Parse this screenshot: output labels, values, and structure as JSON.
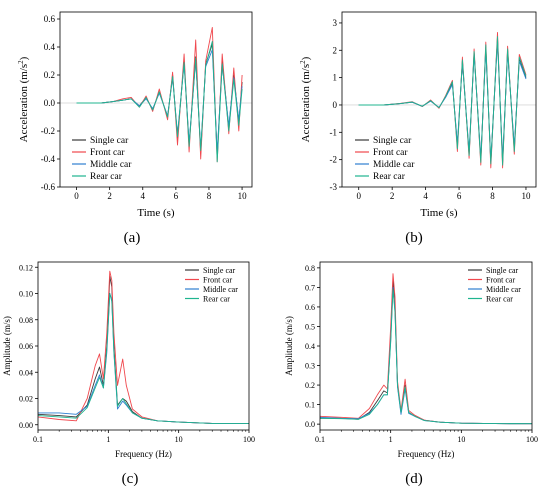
{
  "colors": {
    "single": "#3a3a3a",
    "front": "#f0484e",
    "middle": "#2f7fd0",
    "rear": "#1fb58f",
    "axis": "#000000"
  },
  "chart_data": [
    {
      "type": "line",
      "panel_label": "(a)",
      "xlabel": "Time (s)",
      "ylabel": "Acceleration (m/s²)",
      "ylabel_parts": [
        "Acceleration (m/s",
        "2",
        ")"
      ],
      "xscale": "linear",
      "xlim": [
        -1,
        10.6
      ],
      "ylim": [
        -0.6,
        0.65
      ],
      "xticks": [
        0,
        2,
        4,
        6,
        8,
        10
      ],
      "xtick_labels": [
        "0",
        "2",
        "4",
        "6",
        "8",
        "10"
      ],
      "yticks": [
        -0.6,
        -0.4,
        -0.2,
        0.0,
        0.2,
        0.4,
        0.6
      ],
      "ytick_labels": [
        "-0.6",
        "-0.4",
        "-0.2",
        "0.0",
        "0.2",
        "0.4",
        "0.6"
      ],
      "legend_position": "bottom-left",
      "series": [
        {
          "name": "Single car",
          "key": "single",
          "x": [
            0,
            1.5,
            2.2,
            2.8,
            3.3,
            3.8,
            4.2,
            4.6,
            5.0,
            5.5,
            5.8,
            6.1,
            6.5,
            6.8,
            7.2,
            7.5,
            7.8,
            8.2,
            8.5,
            8.8,
            9.2,
            9.5,
            9.8,
            10.0
          ],
          "y": [
            0,
            0,
            0.01,
            0.02,
            0.03,
            -0.02,
            0.04,
            -0.05,
            0.08,
            -0.1,
            0.2,
            -0.25,
            0.3,
            -0.3,
            0.33,
            -0.36,
            0.28,
            0.42,
            -0.38,
            0.3,
            -0.18,
            0.2,
            -0.14,
            0.15
          ]
        },
        {
          "name": "Front car",
          "key": "front",
          "x": [
            0,
            1.5,
            2.2,
            2.8,
            3.3,
            3.8,
            4.2,
            4.6,
            5.0,
            5.5,
            5.8,
            6.1,
            6.5,
            6.8,
            7.2,
            7.5,
            7.8,
            8.2,
            8.5,
            8.8,
            9.2,
            9.5,
            9.8,
            10.0
          ],
          "y": [
            0,
            0,
            0.01,
            0.03,
            0.04,
            -0.03,
            0.05,
            -0.06,
            0.1,
            -0.12,
            0.22,
            -0.3,
            0.35,
            -0.35,
            0.45,
            -0.4,
            0.3,
            0.54,
            -0.42,
            0.35,
            -0.22,
            0.25,
            -0.2,
            0.2
          ]
        },
        {
          "name": "Middle car",
          "key": "middle",
          "x": [
            0,
            1.5,
            2.2,
            2.8,
            3.3,
            3.8,
            4.2,
            4.6,
            5.0,
            5.5,
            5.8,
            6.1,
            6.5,
            6.8,
            7.2,
            7.5,
            7.8,
            8.2,
            8.5,
            8.8,
            9.2,
            9.5,
            9.8,
            10.0
          ],
          "y": [
            0,
            0,
            0.01,
            0.02,
            0.03,
            -0.02,
            0.03,
            -0.04,
            0.07,
            -0.09,
            0.18,
            -0.22,
            0.28,
            -0.28,
            0.3,
            -0.32,
            0.26,
            0.38,
            -0.35,
            0.27,
            -0.16,
            0.18,
            -0.12,
            0.12
          ]
        },
        {
          "name": "Rear car",
          "key": "rear",
          "x": [
            0,
            1.5,
            2.2,
            2.8,
            3.3,
            3.8,
            4.2,
            4.6,
            5.0,
            5.5,
            5.8,
            6.1,
            6.5,
            6.8,
            7.2,
            7.5,
            7.8,
            8.2,
            8.5,
            8.8,
            9.2,
            9.5,
            9.8,
            10.0
          ],
          "y": [
            0,
            0,
            0.01,
            0.02,
            0.03,
            -0.03,
            0.04,
            -0.05,
            0.08,
            -0.1,
            0.19,
            -0.24,
            0.29,
            -0.31,
            0.32,
            -0.34,
            0.27,
            0.44,
            -0.42,
            0.28,
            -0.2,
            0.17,
            -0.16,
            0.1
          ]
        }
      ]
    },
    {
      "type": "line",
      "panel_label": "(b)",
      "xlabel": "Time (s)",
      "ylabel": "Acceleration (m/s²)",
      "ylabel_parts": [
        "Acceleration (m/s",
        "2",
        ")"
      ],
      "xscale": "linear",
      "xlim": [
        -1,
        10.6
      ],
      "ylim": [
        -3,
        3.4
      ],
      "xticks": [
        0,
        2,
        4,
        6,
        8,
        10
      ],
      "xtick_labels": [
        "0",
        "2",
        "4",
        "6",
        "8",
        "10"
      ],
      "yticks": [
        -3,
        -2,
        -1,
        0,
        1,
        2,
        3
      ],
      "ytick_labels": [
        "-3",
        "-2",
        "-1",
        "0",
        "1",
        "2",
        "3"
      ],
      "legend_position": "bottom-left",
      "series": [
        {
          "name": "Single car",
          "key": "single",
          "x": [
            0,
            1.5,
            2.5,
            3.2,
            3.8,
            4.3,
            4.8,
            5.2,
            5.6,
            5.9,
            6.2,
            6.6,
            6.9,
            7.3,
            7.6,
            7.9,
            8.3,
            8.6,
            8.9,
            9.3,
            9.6,
            10.0
          ],
          "y": [
            0,
            0,
            0.05,
            0.1,
            -0.05,
            0.15,
            -0.1,
            0.3,
            0.8,
            -1.5,
            1.6,
            -1.8,
            1.9,
            -2.0,
            2.1,
            -2.1,
            2.45,
            -2.1,
            2.0,
            -1.6,
            1.7,
            1.0
          ]
        },
        {
          "name": "Front car",
          "key": "front",
          "x": [
            0,
            1.5,
            2.5,
            3.2,
            3.8,
            4.3,
            4.8,
            5.2,
            5.6,
            5.9,
            6.2,
            6.6,
            6.9,
            7.3,
            7.6,
            7.9,
            8.3,
            8.6,
            8.9,
            9.3,
            9.6,
            10.0
          ],
          "y": [
            0,
            0,
            0.06,
            0.12,
            -0.06,
            0.18,
            -0.12,
            0.35,
            0.9,
            -1.7,
            1.75,
            -1.95,
            2.05,
            -2.2,
            2.3,
            -2.3,
            2.65,
            -2.3,
            2.15,
            -1.8,
            1.85,
            1.1
          ]
        },
        {
          "name": "Middle car",
          "key": "middle",
          "x": [
            0,
            1.5,
            2.5,
            3.2,
            3.8,
            4.3,
            4.8,
            5.2,
            5.6,
            5.9,
            6.2,
            6.6,
            6.9,
            7.3,
            7.6,
            7.9,
            8.3,
            8.6,
            8.9,
            9.3,
            9.6,
            10.0
          ],
          "y": [
            0,
            0,
            0.05,
            0.1,
            -0.05,
            0.14,
            -0.09,
            0.28,
            0.75,
            -1.4,
            1.55,
            -1.7,
            1.85,
            -1.95,
            2.0,
            -2.05,
            2.35,
            -2.0,
            1.9,
            -1.5,
            1.6,
            0.95
          ]
        },
        {
          "name": "Rear car",
          "key": "rear",
          "x": [
            0,
            1.5,
            2.5,
            3.2,
            3.8,
            4.3,
            4.8,
            5.2,
            5.6,
            5.9,
            6.2,
            6.6,
            6.9,
            7.3,
            7.6,
            7.9,
            8.3,
            8.6,
            8.9,
            9.3,
            9.6,
            10.0
          ],
          "y": [
            0,
            0,
            0.05,
            0.11,
            -0.05,
            0.16,
            -0.1,
            0.32,
            0.85,
            -1.6,
            1.65,
            -1.85,
            1.95,
            -2.1,
            2.2,
            -2.15,
            2.5,
            -2.2,
            2.05,
            -1.7,
            1.75,
            1.05
          ]
        }
      ]
    },
    {
      "type": "line",
      "panel_label": "(c)",
      "xlabel": "Frequency (Hz)",
      "ylabel": "Amplitude (m/s)",
      "xscale": "log",
      "xlim": [
        0.1,
        100
      ],
      "ylim": [
        -0.004,
        0.124
      ],
      "xticks": [
        0.1,
        1,
        10,
        100
      ],
      "xtick_labels": [
        "0.1",
        "1",
        "10",
        "100"
      ],
      "yticks": [
        0.0,
        0.02,
        0.04,
        0.06,
        0.08,
        0.1,
        0.12
      ],
      "ytick_labels": [
        "0.00",
        "0.02",
        "0.04",
        "0.06",
        "0.08",
        "0.10",
        "0.12"
      ],
      "legend_position": "top-right",
      "series": [
        {
          "name": "Single car",
          "key": "single",
          "x": [
            0.1,
            0.2,
            0.35,
            0.5,
            0.65,
            0.75,
            0.85,
            0.95,
            1.05,
            1.12,
            1.2,
            1.35,
            1.6,
            1.8,
            2.2,
            3,
            5,
            10,
            30,
            100
          ],
          "y": [
            0.008,
            0.007,
            0.006,
            0.015,
            0.035,
            0.044,
            0.03,
            0.06,
            0.113,
            0.105,
            0.06,
            0.015,
            0.02,
            0.018,
            0.01,
            0.005,
            0.003,
            0.002,
            0.001,
            0.001
          ]
        },
        {
          "name": "Front car",
          "key": "front",
          "x": [
            0.1,
            0.2,
            0.35,
            0.5,
            0.65,
            0.75,
            0.85,
            0.95,
            1.05,
            1.12,
            1.2,
            1.35,
            1.6,
            1.8,
            2.2,
            3,
            5,
            10,
            30,
            100
          ],
          "y": [
            0.006,
            0.004,
            0.003,
            0.02,
            0.045,
            0.054,
            0.035,
            0.07,
            0.117,
            0.11,
            0.07,
            0.03,
            0.05,
            0.03,
            0.012,
            0.006,
            0.003,
            0.002,
            0.001,
            0.001
          ]
        },
        {
          "name": "Middle car",
          "key": "middle",
          "x": [
            0.1,
            0.2,
            0.35,
            0.5,
            0.65,
            0.75,
            0.85,
            0.95,
            1.05,
            1.12,
            1.2,
            1.35,
            1.6,
            1.8,
            2.2,
            3,
            5,
            10,
            30,
            100
          ],
          "y": [
            0.009,
            0.009,
            0.008,
            0.014,
            0.03,
            0.038,
            0.028,
            0.055,
            0.1,
            0.095,
            0.055,
            0.012,
            0.018,
            0.015,
            0.009,
            0.005,
            0.003,
            0.002,
            0.001,
            0.001
          ]
        },
        {
          "name": "Rear car",
          "key": "rear",
          "x": [
            0.1,
            0.2,
            0.35,
            0.5,
            0.65,
            0.75,
            0.85,
            0.95,
            1.05,
            1.12,
            1.2,
            1.35,
            1.6,
            1.8,
            2.2,
            3,
            5,
            10,
            30,
            100
          ],
          "y": [
            0.007,
            0.006,
            0.005,
            0.013,
            0.028,
            0.036,
            0.028,
            0.058,
            0.1,
            0.094,
            0.056,
            0.014,
            0.02,
            0.016,
            0.009,
            0.005,
            0.003,
            0.002,
            0.001,
            0.001
          ]
        }
      ]
    },
    {
      "type": "line",
      "panel_label": "(d)",
      "xlabel": "Frequency (Hz)",
      "ylabel": "Amplitude (m/s)",
      "xscale": "log",
      "xlim": [
        0.1,
        100
      ],
      "ylim": [
        -0.03,
        0.83
      ],
      "xticks": [
        0.1,
        1,
        10,
        100
      ],
      "xtick_labels": [
        "0.1",
        "1",
        "10",
        "100"
      ],
      "yticks": [
        0.0,
        0.1,
        0.2,
        0.3,
        0.4,
        0.5,
        0.6,
        0.7,
        0.8
      ],
      "ytick_labels": [
        "0.0",
        "0.1",
        "0.2",
        "0.3",
        "0.4",
        "0.5",
        "0.6",
        "0.7",
        "0.8"
      ],
      "legend_position": "top-right",
      "series": [
        {
          "name": "Single car",
          "key": "single",
          "x": [
            0.1,
            0.2,
            0.35,
            0.5,
            0.65,
            0.8,
            0.9,
            1.0,
            1.08,
            1.15,
            1.25,
            1.4,
            1.6,
            1.8,
            2.2,
            3,
            5,
            10,
            30,
            100
          ],
          "y": [
            0.03,
            0.03,
            0.025,
            0.06,
            0.12,
            0.17,
            0.16,
            0.45,
            0.74,
            0.6,
            0.2,
            0.06,
            0.2,
            0.06,
            0.04,
            0.02,
            0.01,
            0.005,
            0.003,
            0.002
          ]
        },
        {
          "name": "Front car",
          "key": "front",
          "x": [
            0.1,
            0.2,
            0.35,
            0.5,
            0.65,
            0.8,
            0.9,
            1.0,
            1.08,
            1.15,
            1.25,
            1.4,
            1.6,
            1.8,
            2.2,
            3,
            5,
            10,
            30,
            100
          ],
          "y": [
            0.04,
            0.035,
            0.03,
            0.08,
            0.15,
            0.2,
            0.18,
            0.5,
            0.77,
            0.65,
            0.22,
            0.07,
            0.23,
            0.07,
            0.045,
            0.02,
            0.01,
            0.005,
            0.003,
            0.002
          ]
        },
        {
          "name": "Middle car",
          "key": "middle",
          "x": [
            0.1,
            0.2,
            0.35,
            0.5,
            0.65,
            0.8,
            0.9,
            1.0,
            1.08,
            1.15,
            1.25,
            1.4,
            1.6,
            1.8,
            2.2,
            3,
            5,
            10,
            30,
            100
          ],
          "y": [
            0.035,
            0.03,
            0.028,
            0.055,
            0.1,
            0.15,
            0.15,
            0.43,
            0.7,
            0.58,
            0.19,
            0.05,
            0.18,
            0.055,
            0.04,
            0.018,
            0.01,
            0.005,
            0.003,
            0.002
          ]
        },
        {
          "name": "Rear car",
          "key": "rear",
          "x": [
            0.1,
            0.2,
            0.35,
            0.5,
            0.65,
            0.8,
            0.9,
            1.0,
            1.08,
            1.15,
            1.25,
            1.4,
            1.6,
            1.8,
            2.2,
            3,
            5,
            10,
            30,
            100
          ],
          "y": [
            0.03,
            0.028,
            0.025,
            0.05,
            0.1,
            0.15,
            0.15,
            0.42,
            0.69,
            0.57,
            0.2,
            0.06,
            0.19,
            0.06,
            0.04,
            0.018,
            0.01,
            0.005,
            0.003,
            0.002
          ]
        }
      ]
    }
  ]
}
